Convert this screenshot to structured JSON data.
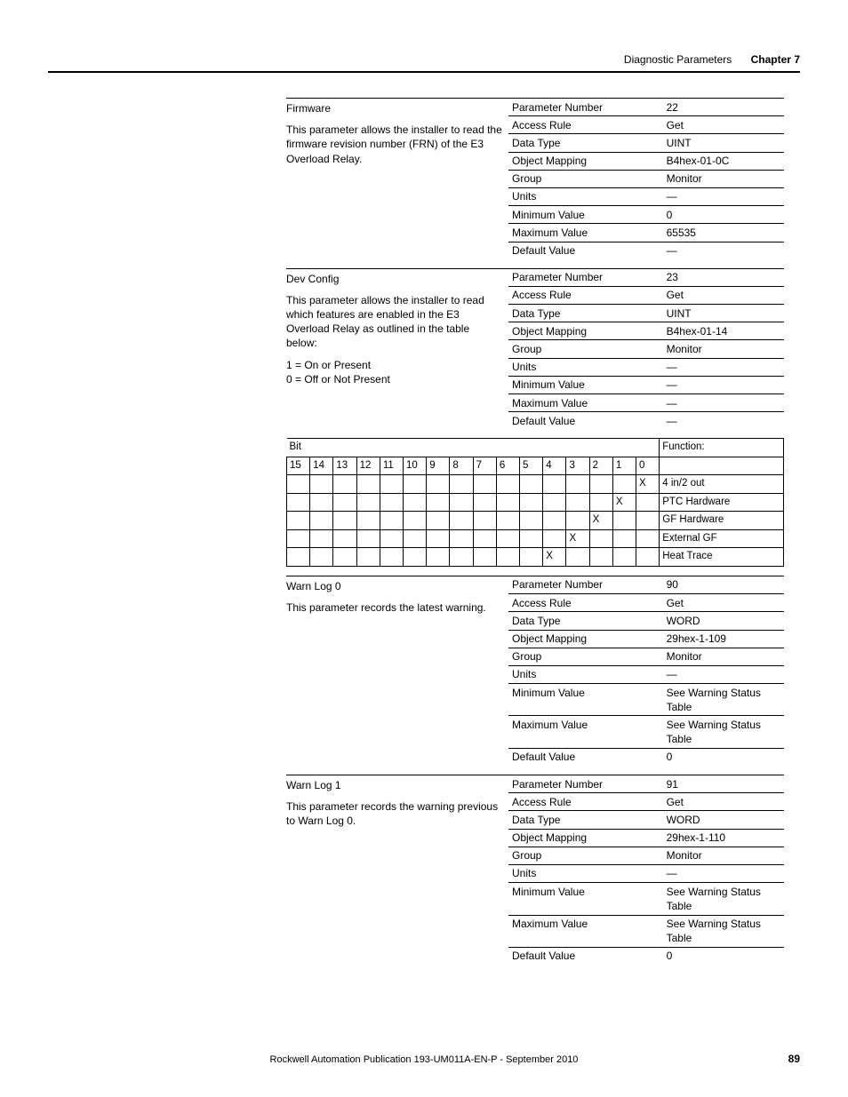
{
  "header": {
    "section": "Diagnostic Parameters",
    "chapter": "Chapter 7"
  },
  "footer": {
    "pub": "Rockwell Automation Publication 193-UM011A-EN-P - September 2010",
    "pagenum": "89"
  },
  "firmware": {
    "title": "Firmware",
    "desc": "This parameter allows the installer to read the firmware revision number (FRN) of the E3 Overload Relay.",
    "rows": [
      [
        "Parameter Number",
        "22"
      ],
      [
        "Access Rule",
        "Get"
      ],
      [
        "Data Type",
        "UINT"
      ],
      [
        "Object Mapping",
        "B4hex-01-0C"
      ],
      [
        "Group",
        "Monitor"
      ],
      [
        "Units",
        "—"
      ],
      [
        "Minimum Value",
        "0"
      ],
      [
        "Maximum Value",
        "65535"
      ],
      [
        "Default Value",
        "—"
      ]
    ]
  },
  "devconfig": {
    "title": "Dev Config",
    "desc": "This parameter allows the installer to read which features are enabled in the E3 Overload Relay as outlined in the table below:",
    "notes": [
      "1 = On or Present",
      "0 = Off or Not Present"
    ],
    "rows": [
      [
        "Parameter Number",
        "23"
      ],
      [
        "Access Rule",
        "Get"
      ],
      [
        "Data Type",
        "UINT"
      ],
      [
        "Object Mapping",
        "B4hex-01-14"
      ],
      [
        "Group",
        "Monitor"
      ],
      [
        "Units",
        "—"
      ],
      [
        "Minimum Value",
        "—"
      ],
      [
        "Maximum Value",
        "—"
      ],
      [
        "Default Value",
        "—"
      ]
    ]
  },
  "bits": {
    "bit_label": "Bit",
    "func_label": "Function:",
    "cols": [
      "15",
      "14",
      "13",
      "12",
      "11",
      "10",
      "9",
      "8",
      "7",
      "6",
      "5",
      "4",
      "3",
      "2",
      "1",
      "0"
    ],
    "rows": [
      {
        "bit": 0,
        "func": "4 in/2 out"
      },
      {
        "bit": 1,
        "func": "PTC Hardware"
      },
      {
        "bit": 2,
        "func": "GF Hardware"
      },
      {
        "bit": 3,
        "func": "External GF"
      },
      {
        "bit": 4,
        "func": "Heat Trace"
      }
    ]
  },
  "warn0": {
    "title": "Warn Log 0",
    "desc": "This parameter records the latest warning.",
    "rows": [
      [
        "Parameter Number",
        "90"
      ],
      [
        "Access Rule",
        "Get"
      ],
      [
        "Data Type",
        "WORD"
      ],
      [
        "Object Mapping",
        "29hex-1-109"
      ],
      [
        "Group",
        "Monitor"
      ],
      [
        "Units",
        "—"
      ],
      [
        "Minimum Value",
        "See Warning Status Table"
      ],
      [
        "Maximum Value",
        "See Warning Status Table"
      ],
      [
        "Default Value",
        "0"
      ]
    ]
  },
  "warn1": {
    "title": "Warn Log 1",
    "desc": "This parameter records the warning previous to Warn Log 0.",
    "rows": [
      [
        "Parameter Number",
        "91"
      ],
      [
        "Access Rule",
        "Get"
      ],
      [
        "Data Type",
        "WORD"
      ],
      [
        "Object Mapping",
        "29hex-1-110"
      ],
      [
        "Group",
        "Monitor"
      ],
      [
        "Units",
        "—"
      ],
      [
        "Minimum Value",
        "See Warning Status Table"
      ],
      [
        "Maximum Value",
        "See Warning Status Table"
      ],
      [
        "Default Value",
        "0"
      ]
    ]
  }
}
